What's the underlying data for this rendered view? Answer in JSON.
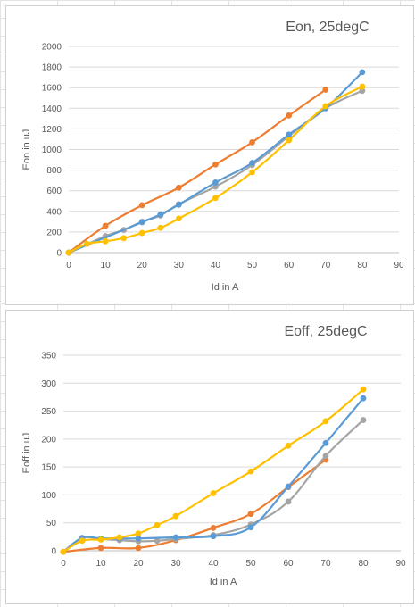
{
  "chart_data": [
    {
      "type": "line",
      "title": "Eon, 25degC",
      "xlabel": "Id in A",
      "ylabel": "Eon in uJ",
      "xlim": [
        0,
        90
      ],
      "ylim": [
        0,
        2000
      ],
      "xticks": [
        "0",
        "10",
        "20",
        "30",
        "40",
        "50",
        "60",
        "70",
        "80",
        "90"
      ],
      "yticks": [
        "0",
        "200",
        "400",
        "600",
        "800",
        "1000",
        "1200",
        "1400",
        "1600",
        "1800",
        "2000"
      ],
      "grid": true,
      "legend": "none",
      "series": [
        {
          "color": "#ED7D31",
          "x": [
            0,
            10,
            20,
            30,
            40,
            50,
            60,
            70
          ],
          "y": [
            0,
            260,
            460,
            630,
            855,
            1070,
            1330,
            1580
          ]
        },
        {
          "color": "#A5A5A5",
          "x": [
            0,
            10,
            15,
            20,
            25,
            30,
            40,
            50,
            60,
            70,
            80
          ],
          "y": [
            0,
            160,
            220,
            300,
            360,
            470,
            640,
            850,
            1130,
            1400,
            1570
          ]
        },
        {
          "color": "#5B9BD5",
          "x": [
            0,
            20,
            25,
            30,
            40,
            50,
            60,
            70,
            80
          ],
          "y": [
            0,
            295,
            370,
            465,
            680,
            870,
            1145,
            1400,
            1750
          ]
        },
        {
          "color": "#FFC000",
          "x": [
            0,
            5,
            10,
            15,
            20,
            25,
            30,
            40,
            50,
            60,
            70,
            80
          ],
          "y": [
            0,
            85,
            110,
            140,
            190,
            240,
            330,
            530,
            780,
            1090,
            1420,
            1610
          ]
        }
      ]
    },
    {
      "type": "line",
      "title": "Eoff, 25degC",
      "xlabel": "Id in A",
      "ylabel": "Eoff in uJ",
      "xlim": [
        0,
        90
      ],
      "ylim": [
        0,
        350
      ],
      "xticks": [
        "0",
        "10",
        "20",
        "30",
        "40",
        "50",
        "60",
        "70",
        "80",
        "90"
      ],
      "yticks": [
        "0",
        "50",
        "100",
        "150",
        "200",
        "250",
        "300",
        "350"
      ],
      "grid": true,
      "legend": "none",
      "series": [
        {
          "color": "#ED7D31",
          "x": [
            0,
            10,
            20,
            30,
            40,
            50,
            60,
            70
          ],
          "y": [
            -2,
            5,
            5,
            19,
            41,
            66,
            114,
            163
          ]
        },
        {
          "color": "#A5A5A5",
          "x": [
            0,
            5,
            10,
            15,
            20,
            25,
            30,
            40,
            50,
            60,
            70,
            80
          ],
          "y": [
            -2,
            23,
            21,
            19,
            17,
            18,
            21,
            28,
            47,
            88,
            170,
            234
          ]
        },
        {
          "color": "#5B9BD5",
          "x": [
            0,
            5,
            10,
            15,
            20,
            30,
            40,
            50,
            60,
            70,
            80
          ],
          "y": [
            -2,
            23,
            22,
            22,
            22,
            24,
            26,
            42,
            115,
            193,
            273
          ]
        },
        {
          "color": "#FFC000",
          "x": [
            0,
            5,
            10,
            15,
            20,
            25,
            30,
            40,
            50,
            60,
            70,
            80
          ],
          "y": [
            -2,
            18,
            20,
            24,
            31,
            46,
            62,
            103,
            142,
            188,
            232,
            289
          ]
        }
      ]
    }
  ]
}
